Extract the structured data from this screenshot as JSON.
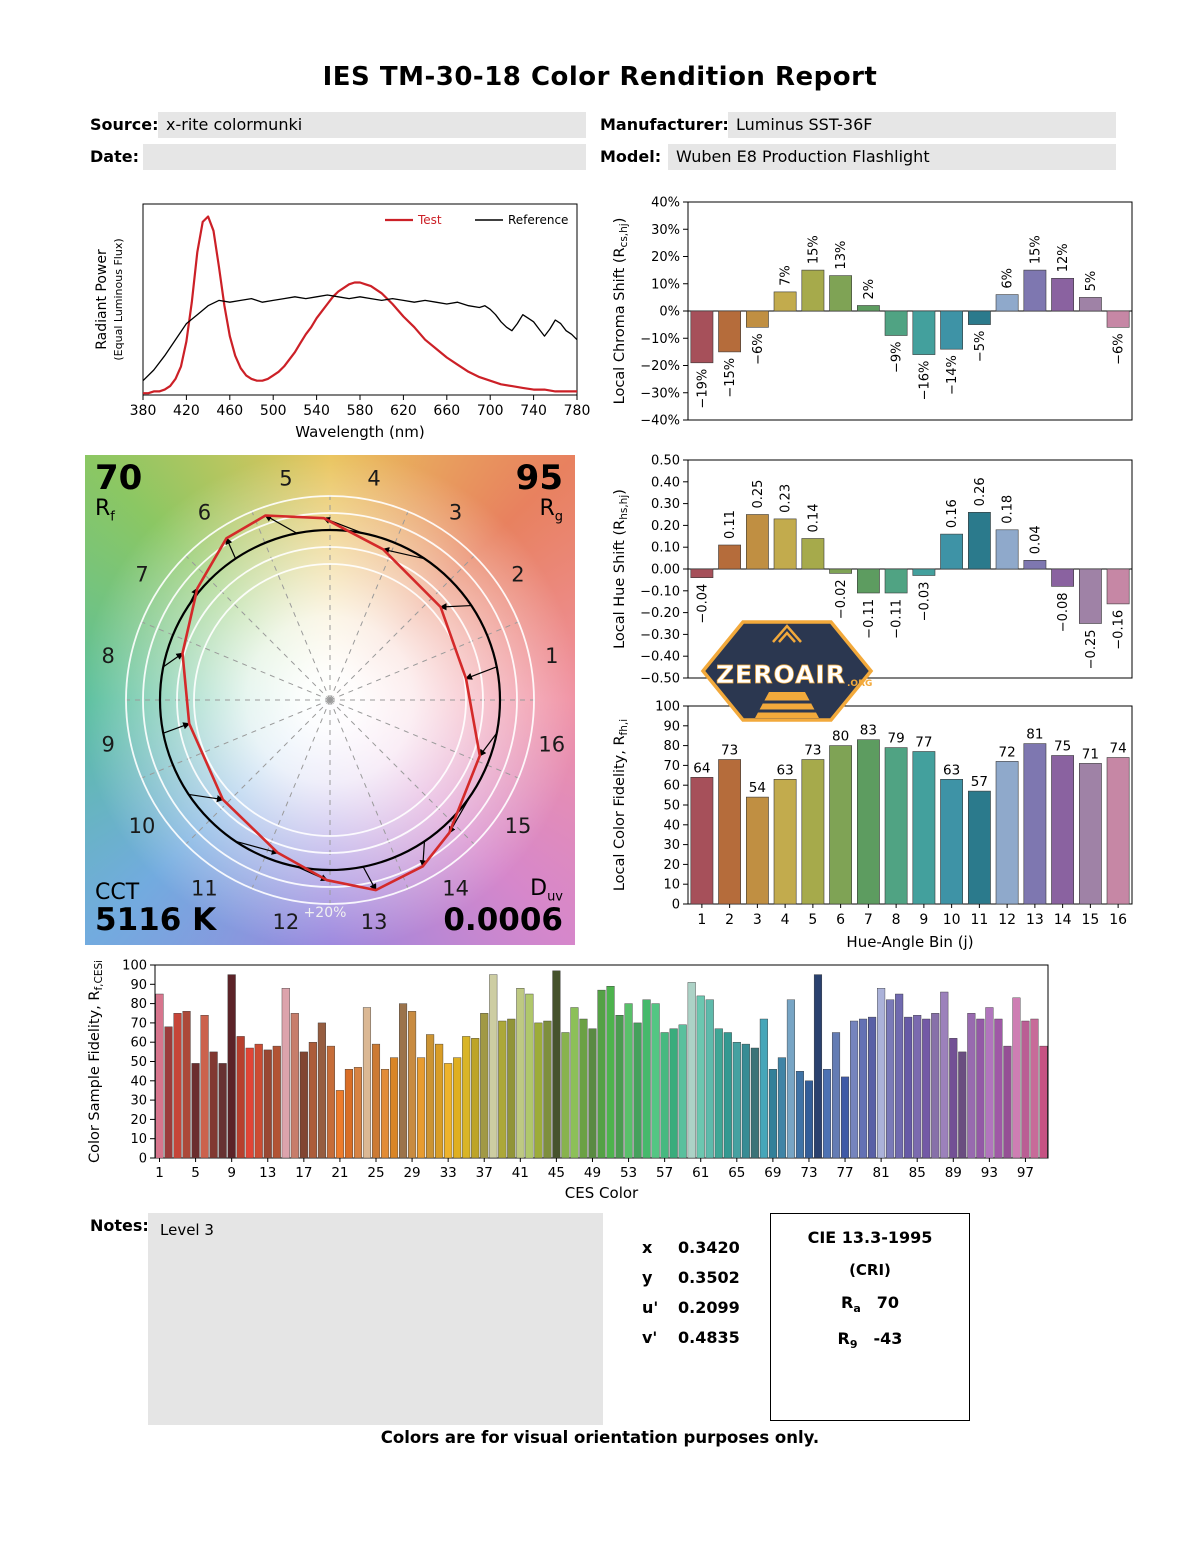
{
  "header": {
    "title": "IES TM-30-18 Color Rendition Report",
    "source_label": "Source:",
    "source_value": "x-rite colormunki",
    "manufacturer_label": "Manufacturer:",
    "manufacturer_value": "Luminus SST-36F",
    "date_label": "Date:",
    "date_value": "",
    "model_label": "Model:",
    "model_value": "Wuben E8 Production Flashlight"
  },
  "hue_bin_colors": [
    "#a6505a",
    "#b56c3b",
    "#c08f42",
    "#c2ab4d",
    "#a6aa4b",
    "#7fa355",
    "#5d9c60",
    "#50a383",
    "#43a09d",
    "#3e93a6",
    "#2b7a8c",
    "#8fa9cb",
    "#7e77b0",
    "#8a62a0",
    "#9f82a6",
    "#c687a5"
  ],
  "chart_data": [
    {
      "id": "spd",
      "type": "line",
      "xlabel": "Wavelength (nm)",
      "ylabel": "Radiant Power",
      "ylabel2": "(Equal Luminous Flux)",
      "xlim": [
        380,
        780
      ],
      "ylim": [
        0,
        1.07
      ],
      "xticks": [
        380,
        420,
        460,
        500,
        540,
        580,
        620,
        660,
        700,
        740,
        780
      ],
      "legend": [
        {
          "label": "Test",
          "color": "#cc2027"
        },
        {
          "label": "Reference",
          "color": "#000000"
        }
      ],
      "series": [
        {
          "name": "Test",
          "color": "#cc2027",
          "width": 2.2,
          "x": [
            380,
            385,
            390,
            395,
            400,
            405,
            410,
            415,
            420,
            425,
            430,
            435,
            440,
            445,
            450,
            455,
            460,
            465,
            470,
            475,
            480,
            485,
            490,
            495,
            500,
            505,
            510,
            515,
            520,
            525,
            530,
            535,
            540,
            545,
            550,
            555,
            560,
            565,
            570,
            575,
            580,
            585,
            590,
            595,
            600,
            610,
            620,
            630,
            640,
            650,
            660,
            670,
            680,
            690,
            700,
            710,
            720,
            730,
            740,
            750,
            760,
            770,
            780
          ],
          "y": [
            0.01,
            0.01,
            0.02,
            0.02,
            0.03,
            0.05,
            0.09,
            0.16,
            0.3,
            0.52,
            0.8,
            0.97,
            1.0,
            0.92,
            0.72,
            0.5,
            0.33,
            0.22,
            0.15,
            0.11,
            0.09,
            0.08,
            0.08,
            0.09,
            0.11,
            0.13,
            0.16,
            0.2,
            0.24,
            0.29,
            0.34,
            0.38,
            0.43,
            0.47,
            0.51,
            0.55,
            0.58,
            0.6,
            0.62,
            0.63,
            0.63,
            0.62,
            0.61,
            0.59,
            0.57,
            0.51,
            0.44,
            0.38,
            0.31,
            0.26,
            0.21,
            0.17,
            0.13,
            0.1,
            0.08,
            0.06,
            0.05,
            0.04,
            0.03,
            0.03,
            0.02,
            0.02,
            0.02
          ]
        },
        {
          "name": "Reference",
          "color": "#000000",
          "width": 1.3,
          "x": [
            380,
            390,
            400,
            410,
            420,
            430,
            440,
            450,
            460,
            470,
            480,
            490,
            500,
            510,
            520,
            530,
            540,
            550,
            560,
            570,
            580,
            590,
            600,
            610,
            620,
            630,
            640,
            650,
            660,
            670,
            680,
            690,
            695,
            700,
            705,
            710,
            715,
            720,
            725,
            730,
            735,
            740,
            745,
            750,
            755,
            760,
            765,
            770,
            775,
            780
          ],
          "y": [
            0.08,
            0.14,
            0.22,
            0.31,
            0.4,
            0.45,
            0.5,
            0.53,
            0.52,
            0.53,
            0.54,
            0.52,
            0.53,
            0.54,
            0.55,
            0.54,
            0.55,
            0.56,
            0.55,
            0.54,
            0.55,
            0.54,
            0.53,
            0.54,
            0.53,
            0.52,
            0.53,
            0.52,
            0.51,
            0.52,
            0.5,
            0.49,
            0.5,
            0.48,
            0.45,
            0.41,
            0.38,
            0.36,
            0.4,
            0.45,
            0.43,
            0.41,
            0.37,
            0.33,
            0.37,
            0.42,
            0.4,
            0.36,
            0.34,
            0.31
          ]
        }
      ]
    },
    {
      "id": "chroma_shift",
      "type": "bar",
      "ylabel_parts": [
        {
          "t": "Local Chroma Shift (R"
        },
        {
          "t": "cs,hj",
          "sub": true
        },
        {
          "t": ")"
        }
      ],
      "ylim": [
        -40,
        40
      ],
      "yticks": [
        {
          "v": 40,
          "label": "40%"
        },
        {
          "v": 30,
          "label": "30%"
        },
        {
          "v": 20,
          "label": "20%"
        },
        {
          "v": 10,
          "label": "10%"
        },
        {
          "v": 0,
          "label": "0%"
        },
        {
          "v": -10,
          "label": "−10%"
        },
        {
          "v": -20,
          "label": "−20%"
        },
        {
          "v": -30,
          "label": "−30%"
        },
        {
          "v": -40,
          "label": "−40%"
        }
      ],
      "categories": [
        1,
        2,
        3,
        4,
        5,
        6,
        7,
        8,
        9,
        10,
        11,
        12,
        13,
        14,
        15,
        16
      ],
      "values": [
        -19,
        -15,
        -6,
        7,
        15,
        13,
        2,
        -9,
        -16,
        -14,
        -5,
        6,
        15,
        12,
        5,
        -6
      ],
      "bar_labels": [
        "−19%",
        "−15%",
        "−6%",
        "7%",
        "15%",
        "13%",
        "2%",
        "−9%",
        "−16%",
        "−14%",
        "−5%",
        "6%",
        "15%",
        "12%",
        "5%",
        "−6%"
      ]
    },
    {
      "id": "hue_shift",
      "type": "bar",
      "ylabel_parts": [
        {
          "t": "Local Hue Shift (R"
        },
        {
          "t": "hs,hj",
          "sub": true
        },
        {
          "t": ")"
        }
      ],
      "ylim": [
        -0.5,
        0.5
      ],
      "yticks": [
        {
          "v": 0.5,
          "label": "0.50"
        },
        {
          "v": 0.4,
          "label": "0.40"
        },
        {
          "v": 0.3,
          "label": "0.30"
        },
        {
          "v": 0.2,
          "label": "0.20"
        },
        {
          "v": 0.1,
          "label": "0.10"
        },
        {
          "v": 0,
          "label": "0.00"
        },
        {
          "v": -0.1,
          "label": "−0.10"
        },
        {
          "v": -0.2,
          "label": "−0.20"
        },
        {
          "v": -0.3,
          "label": "−0.30"
        },
        {
          "v": -0.4,
          "label": "−0.40"
        },
        {
          "v": -0.5,
          "label": "−0.50"
        }
      ],
      "categories": [
        1,
        2,
        3,
        4,
        5,
        6,
        7,
        8,
        9,
        10,
        11,
        12,
        13,
        14,
        15,
        16
      ],
      "values": [
        -0.04,
        0.11,
        0.25,
        0.23,
        0.14,
        -0.02,
        -0.11,
        -0.11,
        -0.03,
        0.16,
        0.26,
        0.18,
        0.04,
        -0.08,
        -0.25,
        -0.16
      ],
      "bar_labels": [
        "−0.04",
        "0.11",
        "0.25",
        "0.23",
        "0.14",
        "−0.02",
        "−0.11",
        "−0.11",
        "−0.03",
        "0.16",
        "0.26",
        "0.18",
        "0.04",
        "−0.08",
        "−0.25",
        "−0.16"
      ]
    },
    {
      "id": "local_fidelity",
      "type": "bar",
      "ylabel_parts": [
        {
          "t": "Local Color Fidelity, R"
        },
        {
          "t": "fh,i",
          "sub": true
        }
      ],
      "xlabel": "Hue-Angle Bin (j)",
      "ylim": [
        0,
        100
      ],
      "yticks": [
        {
          "v": 100,
          "label": "100"
        },
        {
          "v": 90,
          "label": "90"
        },
        {
          "v": 80,
          "label": "80"
        },
        {
          "v": 70,
          "label": "70"
        },
        {
          "v": 60,
          "label": "60"
        },
        {
          "v": 50,
          "label": "50"
        },
        {
          "v": 40,
          "label": "40"
        },
        {
          "v": 30,
          "label": "30"
        },
        {
          "v": 20,
          "label": "20"
        },
        {
          "v": 10,
          "label": "10"
        },
        {
          "v": 0,
          "label": "0"
        }
      ],
      "categories": [
        1,
        2,
        3,
        4,
        5,
        6,
        7,
        8,
        9,
        10,
        11,
        12,
        13,
        14,
        15,
        16
      ],
      "values": [
        64,
        73,
        54,
        63,
        73,
        80,
        83,
        79,
        77,
        63,
        57,
        72,
        81,
        75,
        71,
        74
      ],
      "bar_labels": [
        "64",
        "73",
        "54",
        "63",
        "73",
        "80",
        "83",
        "79",
        "77",
        "63",
        "57",
        "72",
        "81",
        "75",
        "71",
        "74"
      ]
    },
    {
      "id": "ces_fidelity",
      "type": "bar",
      "ylabel_parts": [
        {
          "t": "Color Sample Fidelity, R"
        },
        {
          "t": "f,CESi",
          "sub": true
        }
      ],
      "xlabel": "CES Color",
      "ylim": [
        0,
        100
      ],
      "yticks": [
        {
          "v": 100,
          "label": "100"
        },
        {
          "v": 90,
          "label": "90"
        },
        {
          "v": 80,
          "label": "80"
        },
        {
          "v": 70,
          "label": "70"
        },
        {
          "v": 60,
          "label": "60"
        },
        {
          "v": 50,
          "label": "50"
        },
        {
          "v": 40,
          "label": "40"
        },
        {
          "v": 30,
          "label": "30"
        },
        {
          "v": 20,
          "label": "20"
        },
        {
          "v": 10,
          "label": "10"
        },
        {
          "v": 0,
          "label": "0"
        }
      ],
      "xticks": [
        1,
        5,
        9,
        13,
        17,
        21,
        25,
        29,
        33,
        37,
        41,
        45,
        49,
        53,
        57,
        61,
        65,
        69,
        73,
        77,
        81,
        85,
        89,
        93,
        97
      ],
      "values": [
        85,
        68,
        75,
        76,
        49,
        74,
        55,
        49,
        95,
        63,
        57,
        59,
        56,
        58,
        88,
        75,
        55,
        60,
        70,
        58,
        35,
        46,
        47,
        78,
        59,
        46,
        52,
        80,
        76,
        52,
        64,
        59,
        49,
        52,
        63,
        62,
        75,
        95,
        71,
        72,
        88,
        85,
        70,
        71,
        97,
        65,
        78,
        72,
        67,
        87,
        89,
        74,
        80,
        70,
        82,
        80,
        65,
        67,
        69,
        91,
        84,
        82,
        67,
        65,
        60,
        59,
        57,
        72,
        46,
        52,
        82,
        45,
        40,
        95,
        46,
        65,
        42,
        71,
        72,
        73,
        88,
        82,
        85,
        73,
        74,
        72,
        75,
        86,
        62,
        55,
        75,
        72,
        78,
        72,
        58,
        83,
        71,
        72,
        58
      ],
      "colors": [
        "hsl(345,55%,65%)",
        "hsl(0,45%,42%)",
        "hsl(5,55%,50%)",
        "hsl(8,50%,45%)",
        "hsl(0,40%,30%)",
        "hsl(10,55%,55%)",
        "hsl(5,45%,35%)",
        "hsl(0,35%,30%)",
        "hsl(355,45%,25%)",
        "hsl(8,60%,45%)",
        "hsl(5,75%,55%)",
        "hsl(10,60%,50%)",
        "hsl(12,50%,40%)",
        "hsl(15,55%,45%)",
        "hsl(350,45%,75%)",
        "hsl(12,45%,60%)",
        "hsl(15,45%,35%)",
        "hsl(18,50%,45%)",
        "hsl(20,40%,42%)",
        "hsl(22,55%,50%)",
        "hsl(25,85%,55%)",
        "hsl(24,70%,50%)",
        "hsl(26,65%,55%)",
        "hsl(30,50%,72%)",
        "hsl(28,60%,50%)",
        "hsl(30,75%,55%)",
        "hsl(32,70%,50%)",
        "hsl(30,35%,45%)",
        "hsl(33,55%,52%)",
        "hsl(35,80%,55%)",
        "hsl(38,60%,50%)",
        "hsl(40,70%,50%)",
        "hsl(42,85%,55%)",
        "hsl(45,75%,50%)",
        "hsl(48,70%,50%)",
        "hsl(50,65%,45%)",
        "hsl(55,40%,45%)",
        "hsl(60,30%,72%)",
        "hsl(58,50%,45%)",
        "hsl(62,45%,40%)",
        "hsl(70,40%,65%)",
        "hsl(75,45%,60%)",
        "hsl(68,50%,45%)",
        "hsl(72,40%,40%)",
        "hsl(80,30%,25%)",
        "hsl(85,40%,50%)",
        "hsl(90,45%,55%)",
        "hsl(95,40%,45%)",
        "hsl(100,35%,40%)",
        "hsl(110,40%,45%)",
        "hsl(120,40%,50%)",
        "hsl(125,35%,45%)",
        "hsl(130,45%,55%)",
        "hsl(135,40%,45%)",
        "hsl(140,45%,50%)",
        "hsl(145,50%,55%)",
        "hsl(150,45%,50%)",
        "hsl(155,50%,45%)",
        "hsl(160,45%,55%)",
        "hsl(160,30%,75%)",
        "hsl(165,45%,60%)",
        "hsl(170,40%,55%)",
        "hsl(170,45%,45%)",
        "hsl(175,50%,40%)",
        "hsl(180,40%,45%)",
        "hsl(185,45%,40%)",
        "hsl(185,35%,35%)",
        "hsl(190,45%,50%)",
        "hsl(195,50%,40%)",
        "hsl(200,45%,45%)",
        "hsl(205,40%,62%)",
        "hsl(210,45%,45%)",
        "hsl(215,50%,40%)",
        "hsl(220,45%,30%)",
        "hsl(218,40%,50%)",
        "hsl(222,35%,55%)",
        "hsl(225,45%,45%)",
        "hsl(228,35%,60%)",
        "hsl(230,35%,55%)",
        "hsl(235,30%,50%)",
        "hsl(230,38%,76%)",
        "hsl(240,30%,60%)",
        "hsl(245,30%,55%)",
        "hsl(250,30%,50%)",
        "hsl(255,30%,55%)",
        "hsl(260,30%,50%)",
        "hsl(265,25%,55%)",
        "hsl(268,30%,62%)",
        "hsl(270,30%,45%)",
        "hsl(275,25%,40%)",
        "hsl(280,30%,55%)",
        "hsl(285,30%,50%)",
        "hsl(290,35%,60%)",
        "hsl(295,30%,50%)",
        "hsl(300,30%,45%)",
        "hsl(320,45%,65%)",
        "hsl(325,40%,55%)",
        "hsl(330,45%,60%)",
        "hsl(335,50%,55%)"
      ]
    },
    {
      "id": "cvg",
      "type": "color_vector_graphic",
      "rf_value": "70",
      "rf_label": "R",
      "rf_sub": "f",
      "rg_value": "95",
      "rg_label": "R",
      "rg_sub": "g",
      "cct_label": "CCT",
      "cct_value": "5116 K",
      "duv_label": "D",
      "duv_sub": "uv",
      "duv_value": "0.0006",
      "ring_label": "+20%",
      "bin_labels": [
        "1",
        "2",
        "3",
        "4",
        "5",
        "6",
        "7",
        "8",
        "9",
        "10",
        "11",
        "12",
        "13",
        "14",
        "15",
        "16"
      ]
    }
  ],
  "badge": {
    "name": "ZEROAIR",
    "tld": ".ORG"
  },
  "notes": {
    "label": "Notes:",
    "value": "Level 3"
  },
  "chromaticity": {
    "rows": [
      {
        "label": "x",
        "value": "0.3420"
      },
      {
        "label": "y",
        "value": "0.3502"
      },
      {
        "label": "u'",
        "value": "0.2099"
      },
      {
        "label": "v'",
        "value": "0.4835"
      }
    ]
  },
  "cri": {
    "title": "CIE 13.3-1995",
    "subtitle": "(CRI)",
    "rows": [
      {
        "label": "R",
        "sub": "a",
        "value": "70"
      },
      {
        "label": "R",
        "sub": "9",
        "value": "-43"
      }
    ]
  },
  "footer": "Colors are for visual orientation purposes only."
}
